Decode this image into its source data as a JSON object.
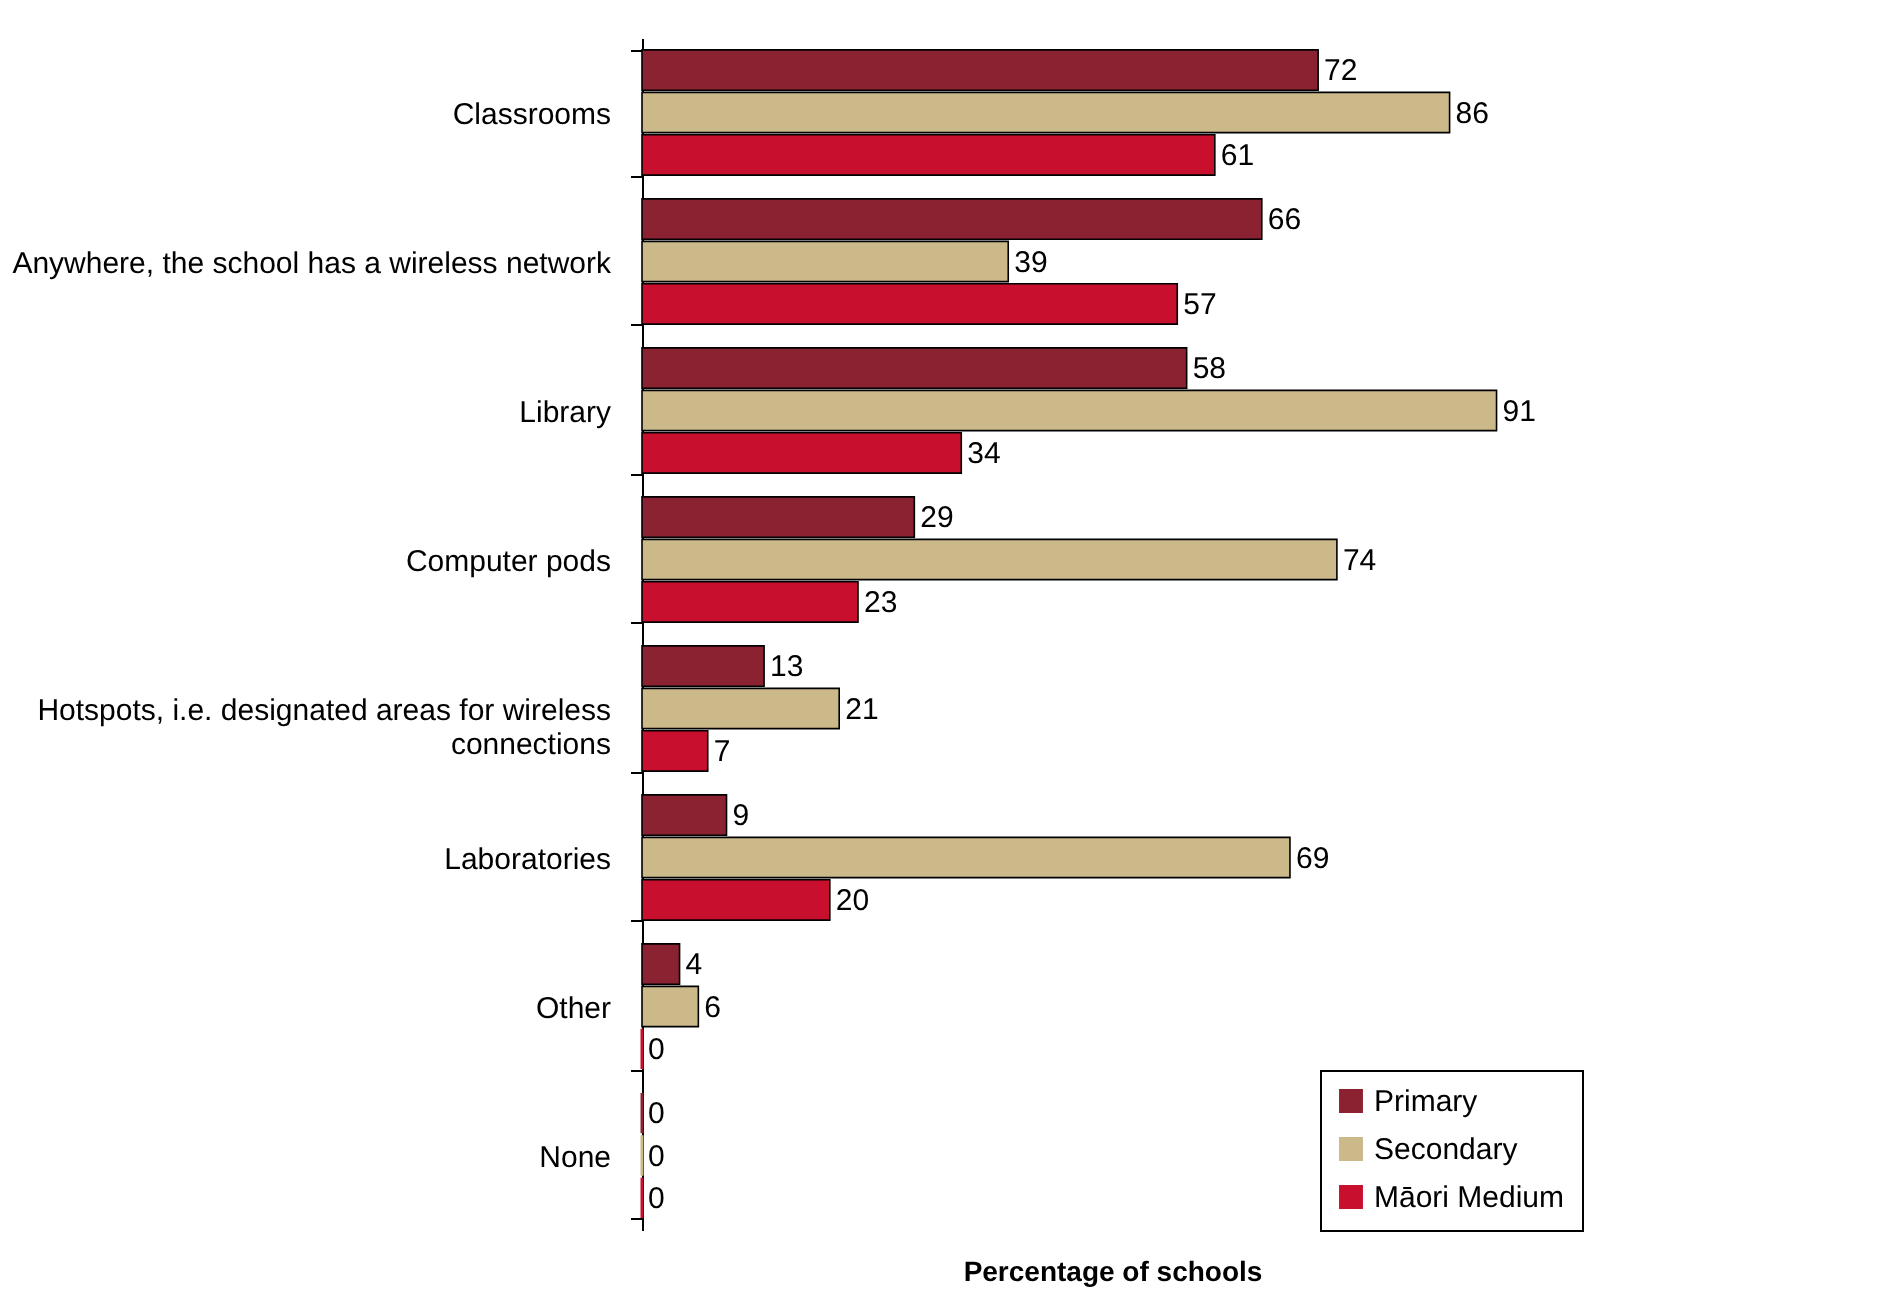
{
  "chart_data": {
    "type": "bar",
    "orientation": "horizontal",
    "xlabel": "Percentage of schools",
    "data_labels": true,
    "legend": "bottom right",
    "categories": [
      "Classrooms",
      "Anywhere, the school has a wireless network",
      "Library",
      "Computer pods",
      "Hotspots, i.e. designated areas for wireless connections",
      "Laboratories",
      "Other",
      "None"
    ],
    "series": [
      {
        "name": "Primary",
        "color": "#8b2232",
        "values": [
          72,
          66,
          58,
          29,
          13,
          9,
          4,
          0
        ]
      },
      {
        "name": "Secondary",
        "color": "#cbb98a",
        "values": [
          86,
          39,
          91,
          74,
          21,
          69,
          6,
          0
        ]
      },
      {
        "name": "Māori Medium",
        "color": "#c8102e",
        "values": [
          61,
          57,
          34,
          23,
          7,
          20,
          0,
          0
        ]
      }
    ]
  }
}
